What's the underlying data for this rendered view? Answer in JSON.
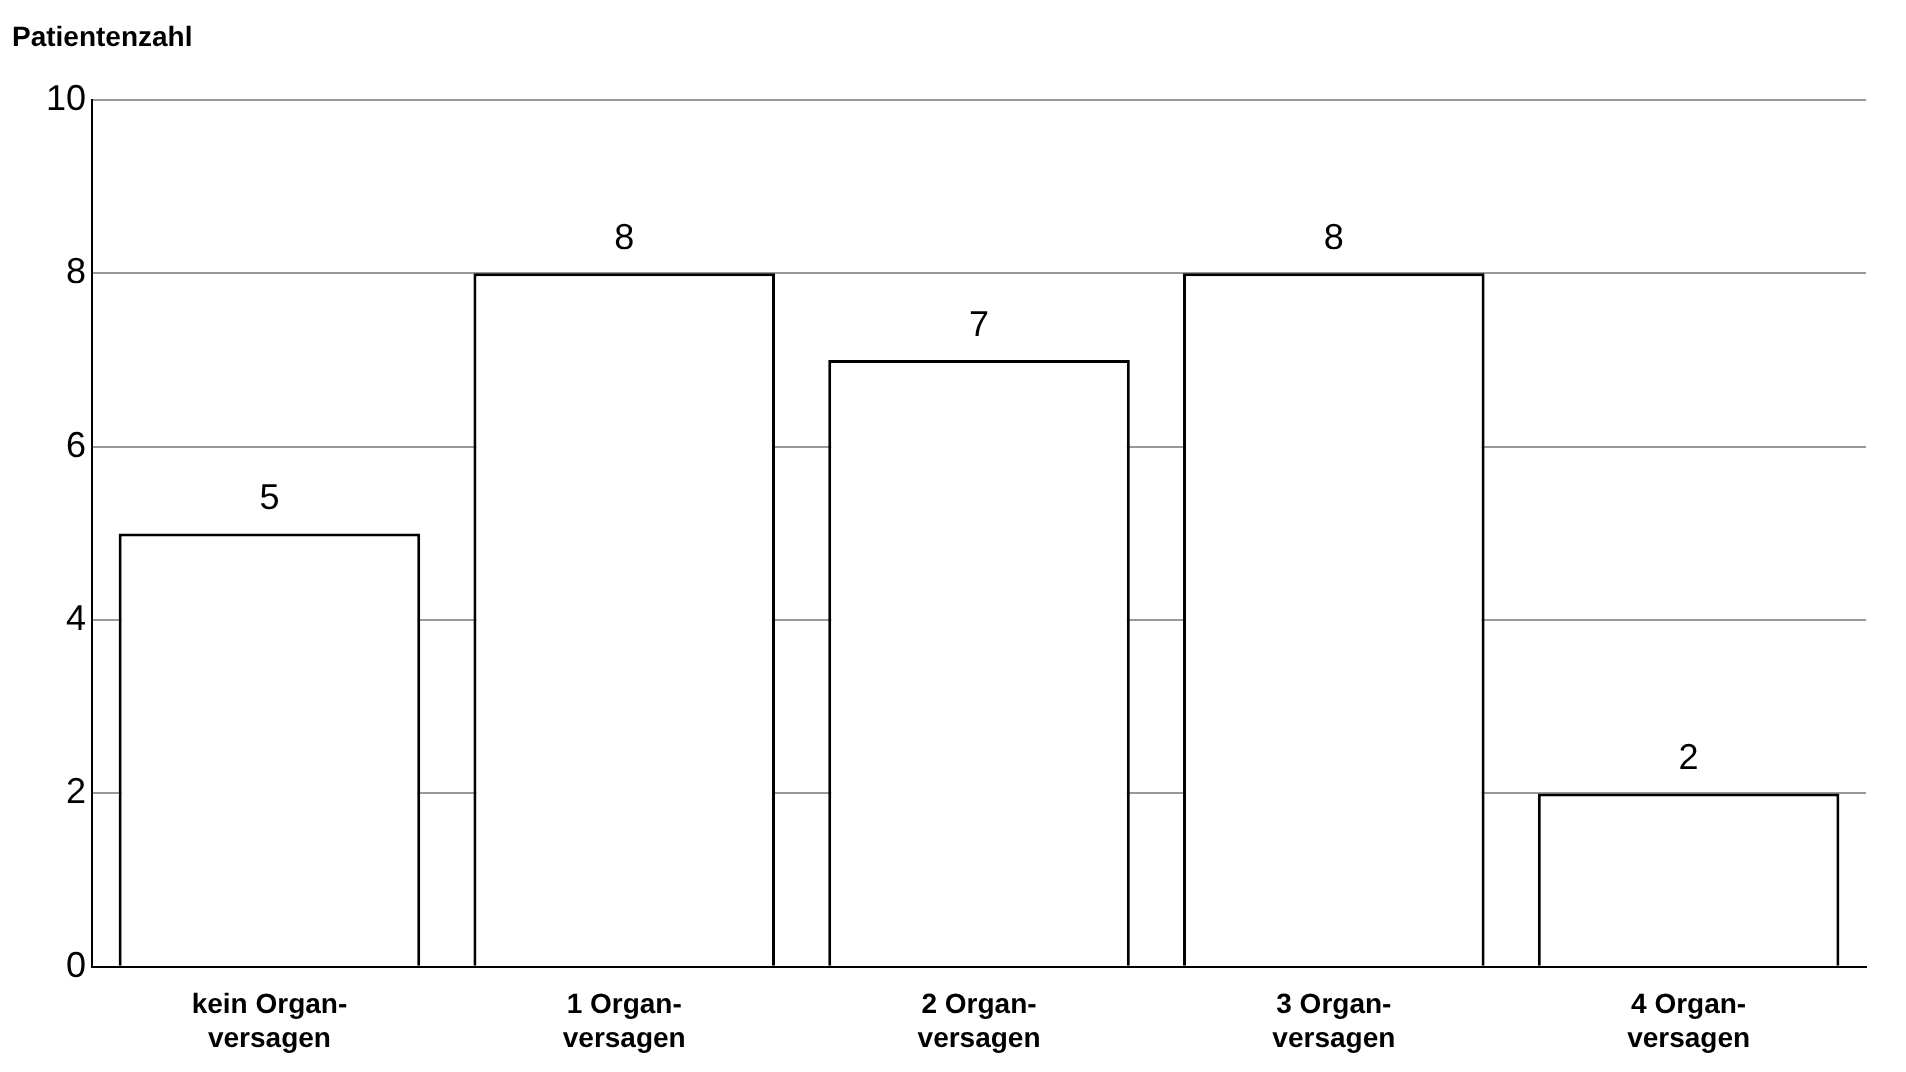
{
  "chart_data": {
    "type": "bar",
    "ylabel": "Patientenzahl",
    "categories": [
      "kein Organ-\nversagen",
      "1 Organ-\nversagen",
      "2 Organ-\nversagen",
      "3 Organ-\nversagen",
      "4 Organ-\nversagen"
    ],
    "values": [
      5,
      8,
      7,
      8,
      2
    ],
    "color": "#ffffff",
    "ylim": [
      0,
      10
    ],
    "yticks": [
      0,
      2,
      4,
      6,
      8,
      10
    ],
    "grid": "y",
    "data_labels": true
  }
}
